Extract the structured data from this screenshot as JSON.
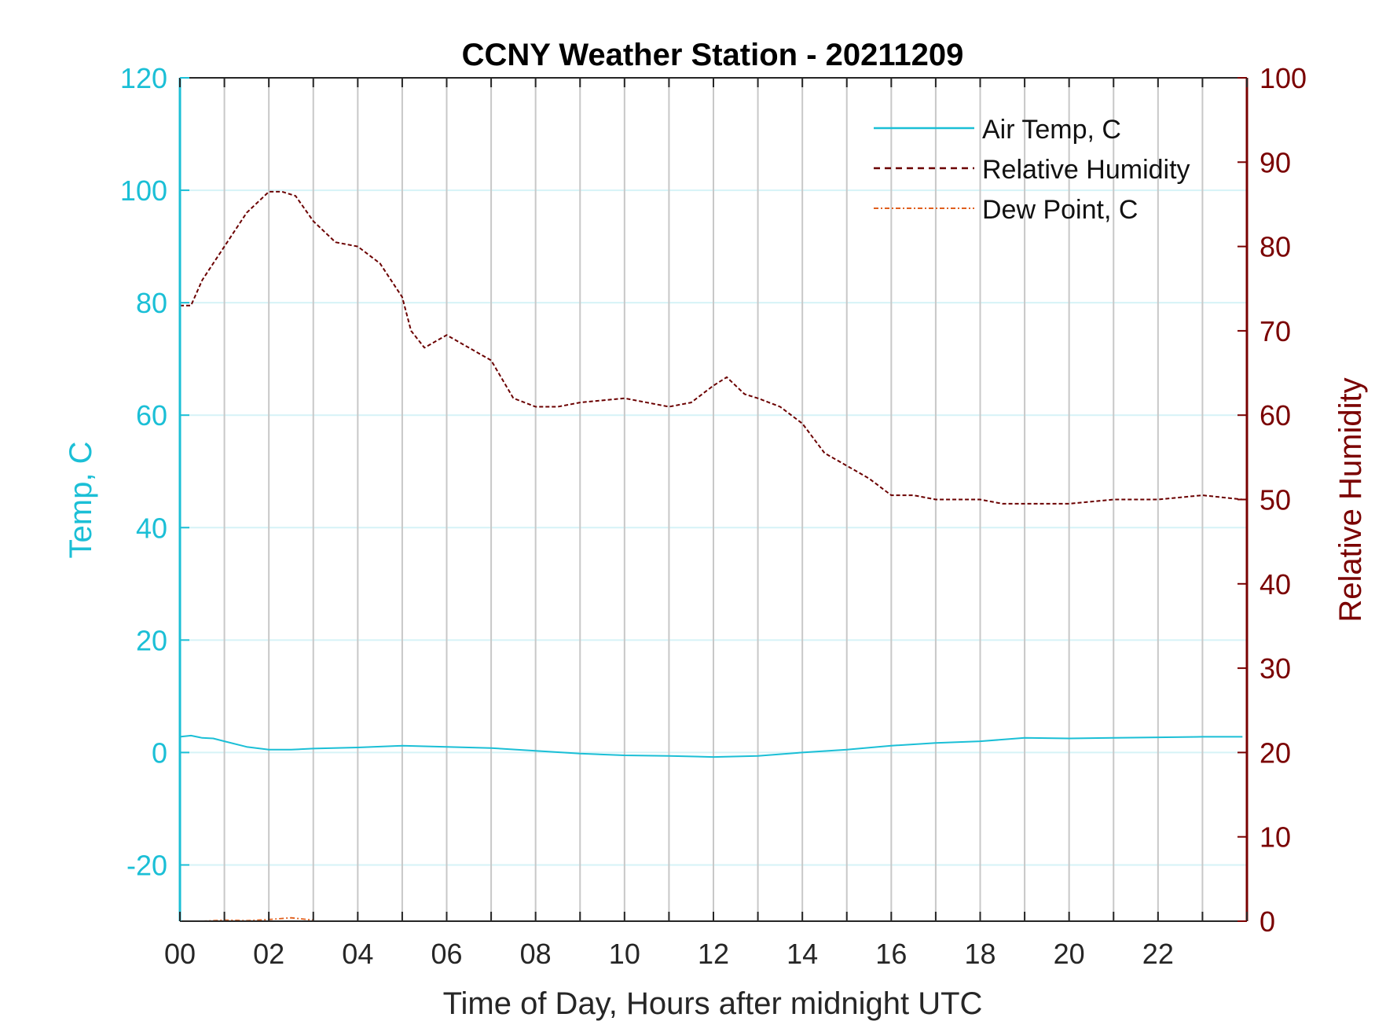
{
  "chart_data": {
    "type": "line",
    "title": "CCNY Weather Station - 20211209",
    "xlabel": "Time of Day, Hours after midnight UTC",
    "ylabel_left": "Temp, C",
    "ylabel_right": "Relative Humidity",
    "xlim": [
      0,
      24
    ],
    "ylim_left": [
      -30,
      120
    ],
    "ylim_right": [
      0,
      100
    ],
    "x_ticks": [
      0,
      2,
      4,
      6,
      8,
      10,
      12,
      14,
      16,
      18,
      20,
      22
    ],
    "x_tick_labels": [
      "00",
      "02",
      "04",
      "06",
      "08",
      "10",
      "12",
      "14",
      "16",
      "18",
      "20",
      "22"
    ],
    "y_left_ticks": [
      -20,
      0,
      20,
      40,
      60,
      80,
      100,
      120
    ],
    "y_left_tick_labels": [
      "-20",
      "0",
      "20",
      "40",
      "60",
      "80",
      "100",
      "120"
    ],
    "y_right_ticks": [
      0,
      10,
      20,
      30,
      40,
      50,
      60,
      70,
      80,
      90,
      100
    ],
    "y_right_tick_labels": [
      "0",
      "10",
      "20",
      "30",
      "40",
      "50",
      "60",
      "70",
      "80",
      "90",
      "100"
    ],
    "grid": true,
    "legend_position": "top-right",
    "colors": {
      "left_axis": "#1bbfd6",
      "right_axis": "#7a0000",
      "air_temp": "#1bbfd6",
      "humidity": "#6b0000",
      "dew_point": "#e0601e",
      "vertical_grid": "#c8c8c8",
      "horizontal_grid": "#d6f3f7"
    },
    "series": [
      {
        "name": "Air Temp, C",
        "axis": "left",
        "style": "solid",
        "x": [
          0,
          0.25,
          0.5,
          0.75,
          1,
          1.5,
          2,
          2.5,
          3,
          4,
          5,
          6,
          7,
          8,
          9,
          10,
          11,
          12,
          13,
          14,
          15,
          16,
          17,
          18,
          19,
          20,
          21,
          22,
          23,
          23.9
        ],
        "y": [
          2.8,
          3.0,
          2.6,
          2.5,
          2.0,
          1.0,
          0.5,
          0.5,
          0.7,
          0.9,
          1.2,
          1.0,
          0.8,
          0.3,
          -0.2,
          -0.5,
          -0.6,
          -0.8,
          -0.6,
          0.0,
          0.5,
          1.2,
          1.7,
          2.0,
          2.6,
          2.5,
          2.6,
          2.7,
          2.8,
          2.8
        ]
      },
      {
        "name": "Relative Humidity",
        "axis": "right",
        "style": "dashed",
        "x": [
          0,
          0.25,
          0.5,
          0.75,
          1,
          1.5,
          2,
          2.3,
          2.6,
          3,
          3.5,
          4,
          4.5,
          5,
          5.2,
          5.5,
          6,
          6.5,
          7,
          7.5,
          8,
          8.5,
          9,
          10,
          11,
          11.5,
          12,
          12.3,
          12.7,
          13,
          13.5,
          14,
          14.5,
          15,
          15.5,
          16,
          16.5,
          17,
          17.5,
          18,
          18.5,
          19,
          20,
          21,
          22,
          23,
          23.9
        ],
        "y": [
          73,
          73,
          76,
          78,
          80,
          84,
          86.5,
          86.5,
          86,
          83,
          80.5,
          80,
          78,
          74,
          70,
          68,
          69.5,
          68,
          66.5,
          62,
          61,
          61,
          61.5,
          62,
          61,
          61.5,
          63.5,
          64.5,
          62.5,
          62,
          61,
          59,
          55.5,
          54,
          52.5,
          50.5,
          50.5,
          50,
          50,
          50,
          49.5,
          49.5,
          49.5,
          50,
          50,
          50.5,
          50
        ]
      },
      {
        "name": "Dew Point, C",
        "axis": "left",
        "style": "dash-dot",
        "x": [
          0.5,
          1,
          1.5,
          2,
          2.5,
          3
        ],
        "y": [
          -30,
          -29.8,
          -29.9,
          -29.7,
          -29.4,
          -29.8
        ]
      }
    ]
  }
}
